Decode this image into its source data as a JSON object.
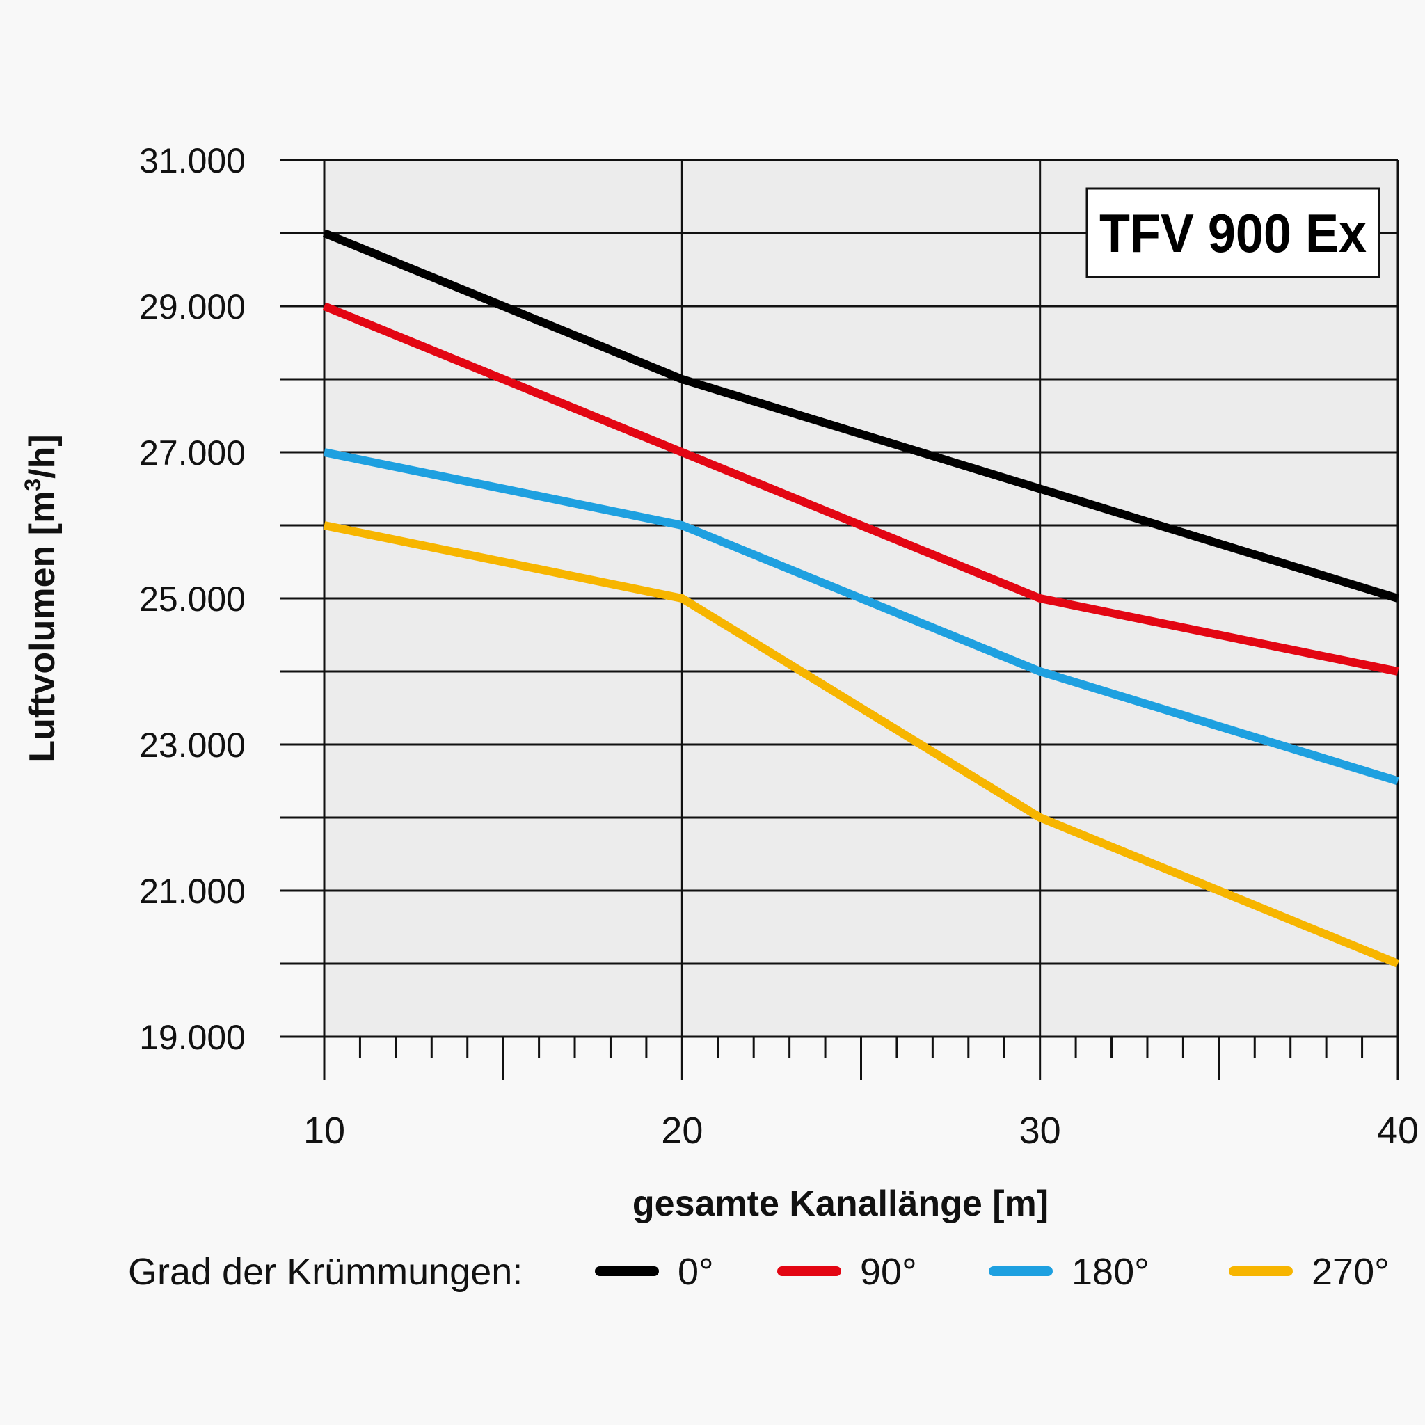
{
  "chart_data": {
    "type": "line",
    "badge": "TFV 900 Ex",
    "xlabel": "gesamte Kanallänge [m]",
    "ylabel_main": "Luftvolumen [m",
    "ylabel_sup": "3",
    "ylabel_end": "/h]",
    "x": [
      10,
      20,
      30,
      40
    ],
    "xlim": [
      10,
      40
    ],
    "ylim": [
      19000,
      31000
    ],
    "x_tick_labels": [
      "10",
      "20",
      "30",
      "40"
    ],
    "y_tick_values": [
      19000,
      21000,
      23000,
      25000,
      27000,
      29000,
      31000
    ],
    "y_tick_labels": [
      "19.000",
      "21.000",
      "23.000",
      "25.000",
      "27.000",
      "29.000",
      "31.000"
    ],
    "grid": true,
    "legend_title": "Grad der Krümmungen:",
    "legend_position": "bottom",
    "series": [
      {
        "name": "0°",
        "color": "#000000",
        "values": [
          30000,
          28000,
          26500,
          25000
        ]
      },
      {
        "name": "90°",
        "color": "#e30613",
        "values": [
          29000,
          27000,
          25000,
          24000
        ]
      },
      {
        "name": "180°",
        "color": "#1ea0e0",
        "values": [
          27000,
          26000,
          24000,
          22500
        ]
      },
      {
        "name": "270°",
        "color": "#f7b500",
        "values": [
          26000,
          25000,
          22000,
          20000
        ]
      }
    ]
  }
}
